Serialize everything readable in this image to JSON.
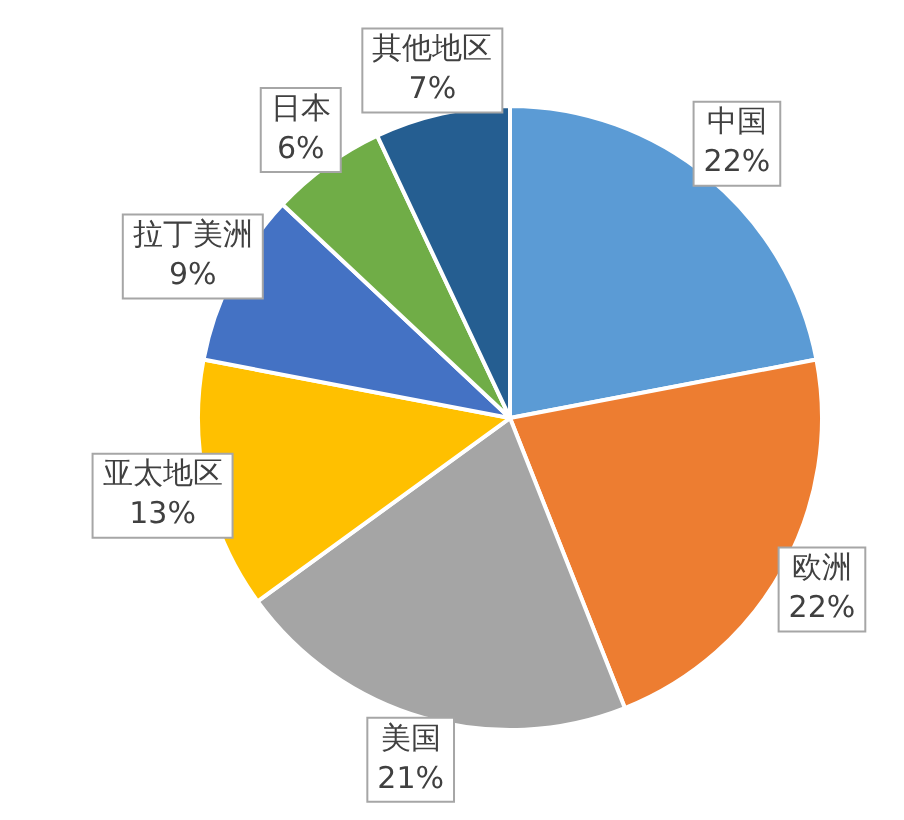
{
  "chart_data": {
    "type": "pie",
    "categories": [
      "中国",
      "欧洲",
      "美国",
      "亚太地区",
      "拉丁美洲",
      "日本",
      "其他地区"
    ],
    "values": [
      22,
      22,
      21,
      13,
      9,
      6,
      7
    ],
    "value_labels": [
      "22%",
      "22%",
      "21%",
      "13%",
      "9%",
      "6%",
      "7%"
    ],
    "colors": [
      "#5b9bd5",
      "#ed7d31",
      "#a5a5a5",
      "#ffc000",
      "#4472c4",
      "#70ad47",
      "#255e91"
    ],
    "legend": false
  }
}
